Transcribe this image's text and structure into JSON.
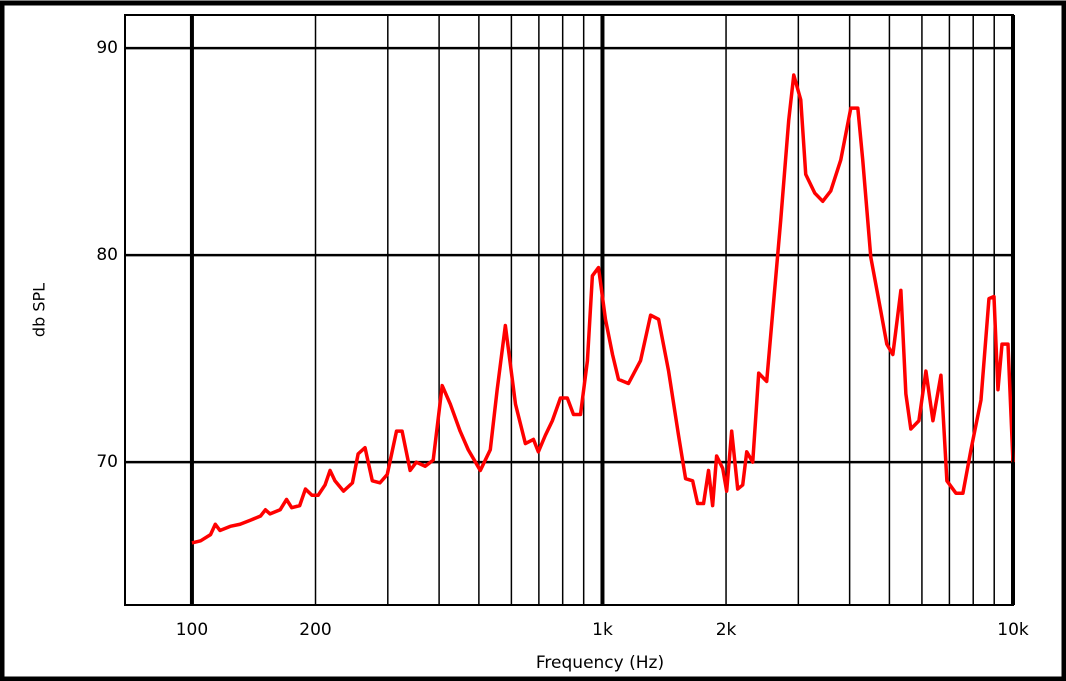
{
  "chart_data": {
    "type": "line",
    "xscale": "log",
    "grid": true,
    "x_label": "Frequency (Hz)",
    "y_label": "db SPL",
    "xlim": [
      68.7,
      10000
    ],
    "ylim": [
      63.1,
      91.6
    ],
    "xticks": [
      100,
      200,
      {
        "value": 1000,
        "label": "1k"
      },
      {
        "value": 2000,
        "label": "2k"
      },
      {
        "value": 10000,
        "label": "10k"
      }
    ],
    "xgrid": [
      100,
      200,
      300,
      400,
      500,
      600,
      700,
      800,
      900,
      1000,
      2000,
      3000,
      4000,
      5000,
      6000,
      7000,
      8000,
      9000,
      10000
    ],
    "yticks": [
      70,
      80,
      90
    ],
    "series": [
      {
        "color": "#ff0000",
        "x": [
          100,
          105,
          111,
          114,
          117,
          124,
          131,
          139,
          147,
          151,
          155,
          164,
          170,
          175,
          183,
          189,
          196,
          203,
          211,
          217,
          223,
          234,
          246,
          254,
          264,
          275,
          287,
          299,
          315,
          325,
          340,
          352,
          370,
          387,
          407,
          426,
          450,
          471,
          504,
          533,
          554,
          580,
          614,
          649,
          679,
          698,
          726,
          755,
          790,
          821,
          850,
          884,
          919,
          945,
          978,
          1017,
          1058,
          1094,
          1157,
          1238,
          1310,
          1370,
          1449,
          1532,
          1594,
          1658,
          1705,
          1763,
          1813,
          1855,
          1897,
          1963,
          2007,
          2064,
          2135,
          2196,
          2246,
          2323,
          2402,
          2512,
          2718,
          2842,
          2924,
          3041,
          3127,
          3289,
          3440,
          3598,
          3806,
          4026,
          4188,
          4305,
          4504,
          4764,
          4928,
          5097,
          5332,
          5483,
          5638,
          5899,
          6136,
          6382,
          6675,
          6902,
          7261,
          7551,
          7900,
          8356,
          8739,
          8988,
          9191,
          9402,
          9723,
          10000
        ],
        "values": [
          66.1,
          66.2,
          66.5,
          67.0,
          66.7,
          66.9,
          67.0,
          67.2,
          67.4,
          67.7,
          67.5,
          67.7,
          68.2,
          67.8,
          67.9,
          68.7,
          68.4,
          68.4,
          68.9,
          69.6,
          69.1,
          68.6,
          69.0,
          70.4,
          70.7,
          69.1,
          69.0,
          69.4,
          71.5,
          71.5,
          69.6,
          70.0,
          69.8,
          70.1,
          73.7,
          72.8,
          71.5,
          70.6,
          69.6,
          70.6,
          73.5,
          76.6,
          72.8,
          70.9,
          71.1,
          70.5,
          71.3,
          72.0,
          73.1,
          73.1,
          72.3,
          72.3,
          74.9,
          79.0,
          79.4,
          76.9,
          75.2,
          74.0,
          73.8,
          74.9,
          77.1,
          76.9,
          74.4,
          71.3,
          69.2,
          69.1,
          68.0,
          68.0,
          69.6,
          67.9,
          70.3,
          69.7,
          68.6,
          71.5,
          68.7,
          68.9,
          70.5,
          70.0,
          74.3,
          73.9,
          81.7,
          86.5,
          88.7,
          87.5,
          83.9,
          83.0,
          82.6,
          83.1,
          84.6,
          87.1,
          87.1,
          84.6,
          79.9,
          77.3,
          75.7,
          75.2,
          78.3,
          73.3,
          71.6,
          72.0,
          74.4,
          72.0,
          74.2,
          69.1,
          68.5,
          68.5,
          70.6,
          73.0,
          77.9,
          78.0,
          73.5,
          75.7,
          75.7,
          70.0
        ]
      }
    ]
  }
}
